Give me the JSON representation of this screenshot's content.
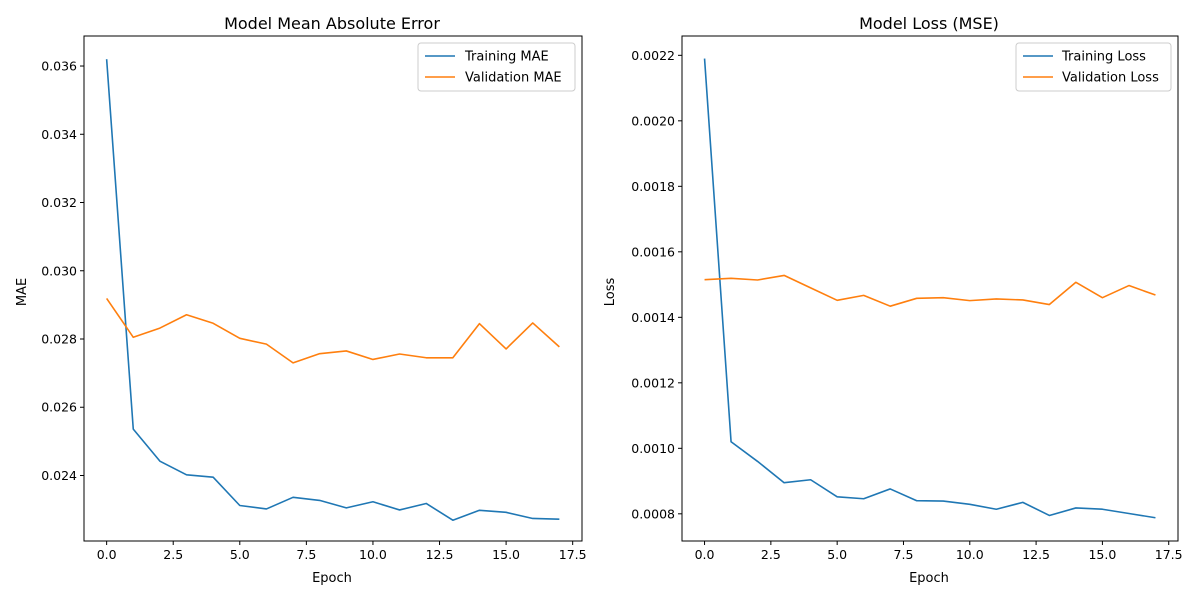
{
  "chart_data": [
    {
      "type": "line",
      "title": "Model Mean Absolute Error",
      "xlabel": "Epoch",
      "ylabel": "MAE",
      "xlim": [
        -0.85,
        17.85
      ],
      "ylim": [
        0.02208,
        0.03688
      ],
      "xticks": [
        0,
        2.5,
        5,
        7.5,
        10,
        12.5,
        15,
        17.5
      ],
      "xtick_labels": [
        "0.0",
        "2.5",
        "5.0",
        "7.5",
        "10.0",
        "12.5",
        "15.0",
        "17.5"
      ],
      "yticks": [
        0.024,
        0.026,
        0.028,
        0.03,
        0.032,
        0.034,
        0.036
      ],
      "ytick_labels": [
        "0.024",
        "0.026",
        "0.028",
        "0.030",
        "0.032",
        "0.034",
        "0.036"
      ],
      "legend": "top-right",
      "grid": false,
      "x": [
        0,
        1,
        2,
        3,
        4,
        5,
        6,
        7,
        8,
        9,
        10,
        11,
        12,
        13,
        14,
        15,
        16,
        17
      ],
      "series": [
        {
          "name": "Training MAE",
          "color": "#1f77b4",
          "values": [
            0.0362,
            0.02536,
            0.02442,
            0.02402,
            0.02395,
            0.02312,
            0.02302,
            0.02336,
            0.02327,
            0.02305,
            0.02323,
            0.02299,
            0.02318,
            0.02269,
            0.02298,
            0.02292,
            0.02274,
            0.02272
          ]
        },
        {
          "name": "Validation MAE",
          "color": "#ff7f0e",
          "values": [
            0.02919,
            0.02805,
            0.02832,
            0.02871,
            0.02846,
            0.02802,
            0.02785,
            0.0273,
            0.02757,
            0.02765,
            0.0274,
            0.02756,
            0.02745,
            0.02745,
            0.02845,
            0.02771,
            0.02847,
            0.02777
          ]
        }
      ]
    },
    {
      "type": "line",
      "title": "Model Loss (MSE)",
      "xlabel": "Epoch",
      "ylabel": "Loss",
      "xlim": [
        -0.85,
        17.85
      ],
      "ylim": [
        0.000717,
        0.002259
      ],
      "xticks": [
        0,
        2.5,
        5,
        7.5,
        10,
        12.5,
        15,
        17.5
      ],
      "xtick_labels": [
        "0.0",
        "2.5",
        "5.0",
        "7.5",
        "10.0",
        "12.5",
        "15.0",
        "17.5"
      ],
      "yticks": [
        0.0008,
        0.001,
        0.0012,
        0.0014,
        0.0016,
        0.0018,
        0.002,
        0.0022
      ],
      "ytick_labels": [
        "0.0008",
        "0.0010",
        "0.0012",
        "0.0014",
        "0.0016",
        "0.0018",
        "0.0020",
        "0.0022"
      ],
      "legend": "top-right",
      "grid": false,
      "x": [
        0,
        1,
        2,
        3,
        4,
        5,
        6,
        7,
        8,
        9,
        10,
        11,
        12,
        13,
        14,
        15,
        16,
        17
      ],
      "series": [
        {
          "name": "Training Loss",
          "color": "#1f77b4",
          "values": [
            0.00219,
            0.00102,
            0.00096,
            0.000895,
            0.000904,
            0.000852,
            0.000846,
            0.000876,
            0.00084,
            0.000839,
            0.000829,
            0.000814,
            0.000835,
            0.000795,
            0.000818,
            0.000814,
            0.000801,
            0.000788
          ]
        },
        {
          "name": "Validation Loss",
          "color": "#ff7f0e",
          "values": [
            0.001515,
            0.001519,
            0.001514,
            0.001528,
            0.00149,
            0.001452,
            0.001467,
            0.001434,
            0.001458,
            0.00146,
            0.001451,
            0.001456,
            0.001453,
            0.001439,
            0.001507,
            0.00146,
            0.001497,
            0.001468
          ]
        }
      ]
    }
  ]
}
